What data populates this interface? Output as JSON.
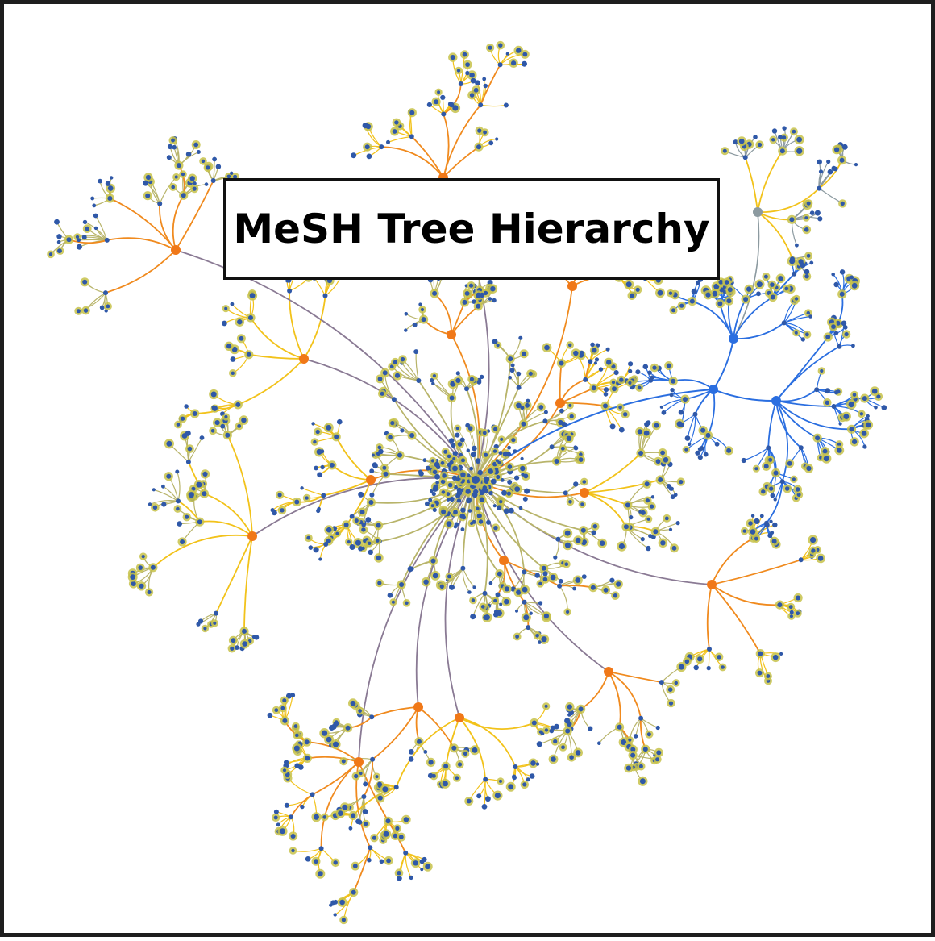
{
  "title": "MeSH Tree Hierarchy",
  "colors": {
    "background": "#ffffff",
    "frame": "#1e1e1e",
    "root_edge": "#8a7a94",
    "cluster_edge": "#f08a1e",
    "branch_edge": "#f2c21a",
    "leaf_edge": "#b8b46a",
    "blue_branch": "#2a6ee0",
    "gray_branch": "#8c9aa0",
    "hub_node": "#f07818",
    "leaf_node": "#2f58a8",
    "leaf_halo": "#c7c24a",
    "red_edge": "#e0401e"
  }
}
